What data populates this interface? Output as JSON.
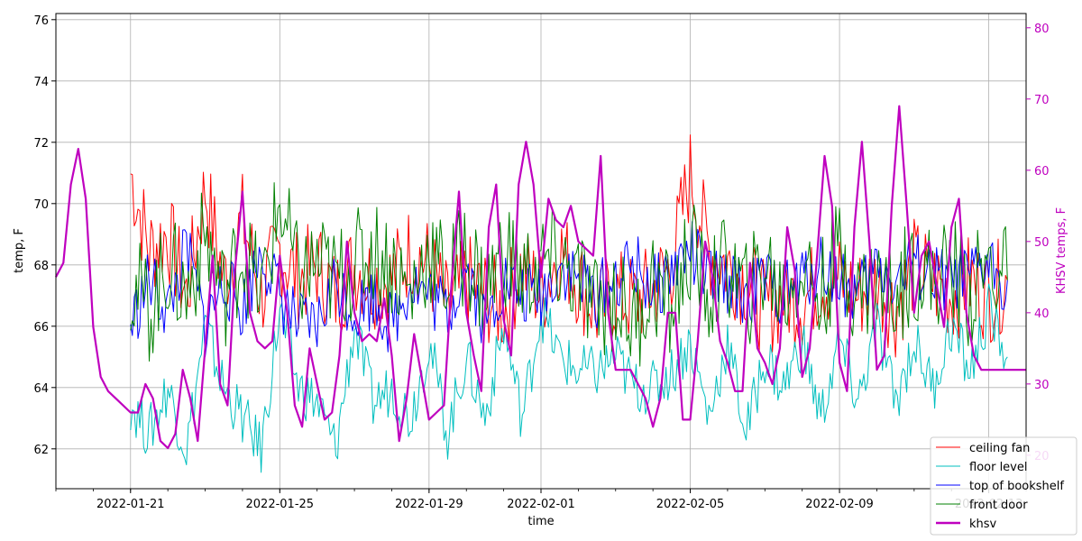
{
  "chart_data": {
    "type": "line",
    "title": "",
    "xlabel": "time",
    "ylabel": "temp, F",
    "y2label": "KHSV temps, F",
    "x_date_range": [
      "2022-01-19",
      "2022-02-14"
    ],
    "x_ticks": [
      {
        "day": 2,
        "label": "2022-01-21"
      },
      {
        "day": 6,
        "label": "2022-01-25"
      },
      {
        "day": 10,
        "label": "2022-01-29"
      },
      {
        "day": 13,
        "label": "2022-02-01"
      },
      {
        "day": 17,
        "label": "2022-02-05"
      },
      {
        "day": 21,
        "label": "2022-02-09"
      },
      {
        "day": 25,
        "label": "2022-02-13"
      }
    ],
    "ylim": [
      60.7,
      76.2
    ],
    "yticks": [
      62,
      64,
      66,
      68,
      70,
      72,
      74,
      76
    ],
    "y2lim": [
      15.3,
      82
    ],
    "y2ticks": [
      20,
      30,
      40,
      50,
      60,
      70,
      80
    ],
    "grid": true,
    "legend_position": "bottom-right",
    "colors": {
      "ceiling_fan": "#ff0000",
      "floor_level": "#00bfbf",
      "top_of_bookshelf": "#0000ff",
      "front_door": "#008000",
      "khsv": "#bf00bf"
    },
    "series": [
      {
        "name": "ceiling fan",
        "color": "#ff0000",
        "x": [
          2.0,
          2.5,
          3.0,
          3.5,
          4.0,
          4.5,
          5.0,
          5.5,
          6.0,
          6.5,
          7.0,
          7.5,
          8.0,
          8.5,
          9.0,
          9.5,
          10.0,
          10.5,
          11.0,
          11.5,
          12.0,
          12.5,
          13.0,
          13.5,
          14.0,
          14.5,
          15.0,
          15.5,
          16.0,
          16.5,
          17.0,
          17.5,
          18.0,
          18.5,
          19.0,
          19.5,
          20.0,
          20.5,
          21.0,
          21.5,
          22.0,
          22.5,
          23.0,
          23.5,
          24.0,
          24.5,
          25.0,
          25.5
        ],
        "y": [
          71.0,
          68.5,
          69.0,
          67.0,
          70.5,
          67.5,
          69.5,
          67.0,
          68.5,
          67.5,
          68.0,
          67.0,
          68.0,
          67.5,
          67.5,
          68.5,
          68.0,
          66.5,
          67.5,
          67.0,
          66.5,
          68.0,
          67.0,
          68.5,
          67.5,
          66.5,
          67.0,
          66.8,
          67.2,
          68.0,
          71.0,
          68.5,
          68.0,
          67.5,
          66.5,
          67.0,
          66.8,
          67.5,
          67.5,
          67.0,
          67.5,
          66.5,
          68.0,
          67.5,
          67.0,
          67.5,
          67.0,
          67.5
        ]
      },
      {
        "name": "floor level",
        "color": "#00bfbf",
        "x": [
          2.0,
          2.5,
          3.0,
          3.5,
          4.0,
          4.5,
          5.0,
          5.5,
          6.0,
          6.5,
          7.0,
          7.5,
          8.0,
          8.5,
          9.0,
          9.5,
          10.0,
          10.5,
          11.0,
          11.5,
          12.0,
          12.5,
          13.0,
          13.5,
          14.0,
          14.5,
          15.0,
          15.5,
          16.0,
          16.5,
          17.0,
          17.5,
          18.0,
          18.5,
          19.0,
          19.5,
          20.0,
          20.5,
          21.0,
          21.5,
          22.0,
          22.5,
          23.0,
          23.5,
          24.0,
          24.5,
          25.0,
          25.5
        ],
        "y": [
          63.5,
          62.5,
          64.0,
          62.0,
          66.0,
          64.0,
          63.0,
          62.0,
          66.5,
          64.0,
          63.5,
          62.0,
          66.0,
          63.5,
          64.0,
          63.0,
          65.5,
          62.5,
          65.0,
          63.0,
          66.0,
          63.0,
          66.5,
          65.0,
          64.5,
          64.5,
          65.0,
          64.0,
          64.0,
          64.5,
          65.5,
          63.0,
          65.5,
          62.5,
          65.0,
          64.0,
          65.5,
          63.0,
          65.5,
          63.5,
          66.0,
          63.5,
          65.5,
          64.0,
          66.0,
          64.5,
          66.5,
          65.0
        ]
      },
      {
        "name": "top of bookshelf",
        "color": "#0000ff",
        "x": [
          2.0,
          2.5,
          3.0,
          3.5,
          4.0,
          4.5,
          5.0,
          5.5,
          6.0,
          6.5,
          7.0,
          7.5,
          8.0,
          8.5,
          9.0,
          9.5,
          10.0,
          10.5,
          11.0,
          11.5,
          12.0,
          12.5,
          13.0,
          13.5,
          14.0,
          14.5,
          15.0,
          15.5,
          16.0,
          16.5,
          17.0,
          17.5,
          18.0,
          18.5,
          19.0,
          19.5,
          20.0,
          20.5,
          21.0,
          21.5,
          22.0,
          22.5,
          23.0,
          23.5,
          24.0,
          24.5,
          25.0,
          25.5
        ],
        "y": [
          66.0,
          67.5,
          66.5,
          68.5,
          66.0,
          67.5,
          66.5,
          68.5,
          67.0,
          66.0,
          66.0,
          67.5,
          66.5,
          67.0,
          66.0,
          67.5,
          67.0,
          66.5,
          68.0,
          66.0,
          67.5,
          67.0,
          67.0,
          68.0,
          67.5,
          67.0,
          67.5,
          68.0,
          67.2,
          67.8,
          68.5,
          67.5,
          67.5,
          67.0,
          67.5,
          67.0,
          67.5,
          68.0,
          67.5,
          67.0,
          68.0,
          67.5,
          68.0,
          67.5,
          67.5,
          67.5,
          68.0,
          67.5
        ]
      },
      {
        "name": "front door",
        "color": "#008000",
        "x": [
          2.0,
          2.5,
          3.0,
          3.5,
          4.0,
          4.5,
          5.0,
          5.5,
          6.0,
          6.5,
          7.0,
          7.5,
          8.0,
          8.5,
          9.0,
          9.5,
          10.0,
          10.5,
          11.0,
          11.5,
          12.0,
          12.5,
          13.0,
          13.5,
          14.0,
          14.5,
          15.0,
          15.5,
          16.0,
          16.5,
          17.0,
          17.5,
          18.0,
          18.5,
          19.0,
          19.5,
          20.0,
          20.5,
          21.0,
          21.5,
          22.0,
          22.5,
          23.0,
          23.5,
          24.0,
          24.5,
          25.0,
          25.5
        ],
        "y": [
          67.5,
          66.5,
          68.0,
          67.0,
          69.0,
          67.0,
          68.5,
          67.0,
          70.0,
          67.5,
          68.0,
          67.5,
          68.0,
          68.5,
          68.0,
          67.0,
          68.5,
          67.5,
          68.5,
          67.0,
          68.5,
          67.5,
          68.0,
          68.0,
          67.5,
          66.5,
          67.0,
          66.0,
          67.5,
          66.5,
          68.5,
          67.0,
          68.0,
          67.0,
          68.0,
          67.0,
          68.0,
          67.0,
          68.5,
          67.0,
          67.5,
          67.0,
          68.0,
          67.5,
          68.0,
          67.0,
          68.0,
          67.5
        ]
      },
      {
        "name": "khsv",
        "color": "#bf00bf",
        "axis": "right",
        "x": [
          0.0,
          0.2,
          0.4,
          0.6,
          0.8,
          1.0,
          1.2,
          1.4,
          1.6,
          1.8,
          2.0,
          2.2,
          2.4,
          2.6,
          2.8,
          3.0,
          3.2,
          3.4,
          3.6,
          3.8,
          4.0,
          4.2,
          4.4,
          4.6,
          4.8,
          5.0,
          5.2,
          5.4,
          5.6,
          5.8,
          6.0,
          6.2,
          6.4,
          6.6,
          6.8,
          7.0,
          7.2,
          7.4,
          7.6,
          7.8,
          8.0,
          8.2,
          8.4,
          8.6,
          8.8,
          9.0,
          9.2,
          9.4,
          9.6,
          9.8,
          10.0,
          10.2,
          10.4,
          10.6,
          10.8,
          11.0,
          11.2,
          11.4,
          11.6,
          11.8,
          12.0,
          12.2,
          12.4,
          12.6,
          12.8,
          13.0,
          13.2,
          13.4,
          13.6,
          13.8,
          14.0,
          14.2,
          14.4,
          14.6,
          14.8,
          15.0,
          15.2,
          15.4,
          15.6,
          15.8,
          16.0,
          16.2,
          16.4,
          16.6,
          16.8,
          17.0,
          17.2,
          17.4,
          17.6,
          17.8,
          18.0,
          18.2,
          18.4,
          18.6,
          18.8,
          19.0,
          19.2,
          19.4,
          19.6,
          19.8,
          20.0,
          20.2,
          20.4,
          20.6,
          20.8,
          21.0,
          21.2,
          21.4,
          21.6,
          21.8,
          22.0,
          22.2,
          22.4,
          22.6,
          22.8,
          23.0,
          23.2,
          23.4,
          23.6,
          23.8,
          24.0,
          24.2,
          24.4,
          24.6,
          24.8,
          25.0,
          25.2,
          25.4,
          25.6,
          25.8,
          26.0
        ],
        "y": [
          45,
          47,
          58,
          63,
          56,
          38,
          31,
          29,
          28,
          27,
          26,
          26,
          30,
          28,
          22,
          21,
          23,
          32,
          28,
          22,
          35,
          48,
          30,
          27,
          46,
          57,
          40,
          36,
          35,
          36,
          48,
          40,
          27,
          24,
          35,
          30,
          25,
          26,
          34,
          50,
          40,
          36,
          37,
          36,
          42,
          34,
          22,
          28,
          37,
          31,
          25,
          26,
          27,
          44,
          57,
          40,
          34,
          29,
          52,
          58,
          39,
          34,
          58,
          64,
          58,
          45,
          56,
          53,
          52,
          55,
          50,
          49,
          48,
          62,
          40,
          32,
          32,
          32,
          30,
          28,
          24,
          28,
          40,
          40,
          25,
          25,
          36,
          50,
          45,
          36,
          33,
          29,
          29,
          47,
          35,
          33,
          30,
          35,
          52,
          46,
          31,
          35,
          48,
          62,
          55,
          33,
          29,
          52,
          64,
          50,
          32,
          34,
          55,
          69,
          55,
          40,
          48,
          50,
          44,
          38,
          52,
          56,
          40,
          34,
          32,
          32,
          32,
          32,
          32,
          32,
          32
        ]
      }
    ]
  }
}
